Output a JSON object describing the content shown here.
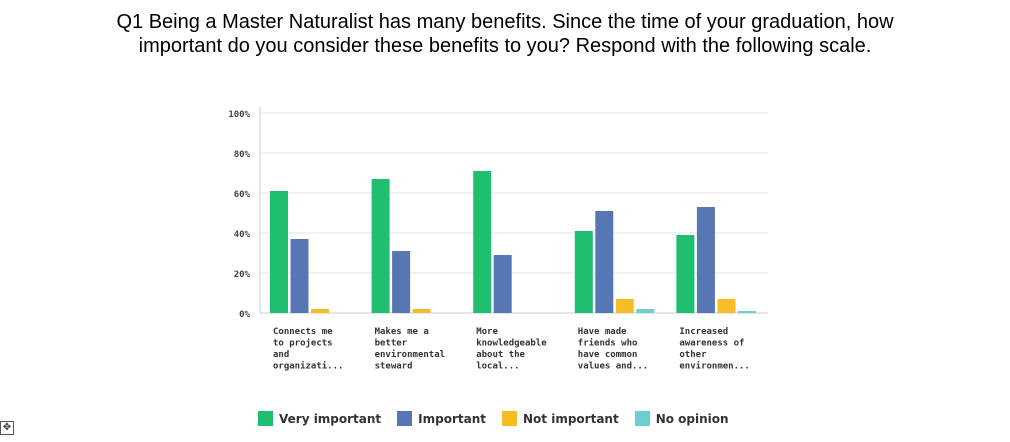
{
  "question": {
    "line1": "Q1 Being a Master Naturalist has many benefits. Since the time of your graduation, how",
    "line2": "important do you consider these benefits to you? Respond with the following scale."
  },
  "move_handle_icon": "move-icon",
  "colors": {
    "very_important": "#1fbf6f",
    "important": "#5677b4",
    "not_important": "#f7bd26",
    "no_opinion": "#6ccfcf",
    "grid": "#e6e6e6",
    "axis": "#cccccc"
  },
  "chart_data": {
    "type": "bar",
    "title": "",
    "xlabel": "",
    "ylabel": "",
    "ylim": [
      0,
      100
    ],
    "yticks": [
      "0%",
      "20%",
      "40%",
      "60%",
      "80%",
      "100%"
    ],
    "categories": [
      [
        "Connects me",
        "to projects",
        "and",
        "organizati..."
      ],
      [
        "Makes me a",
        "better",
        "environmental",
        "steward"
      ],
      [
        "More",
        "knowledgeable",
        "about the",
        "local..."
      ],
      [
        "Have made",
        "friends who",
        "have common",
        "values and..."
      ],
      [
        "Increased",
        "awareness of",
        "other",
        "environmen..."
      ]
    ],
    "series": [
      {
        "name": "Very important",
        "color": "#1fbf6f",
        "values": [
          61,
          67,
          71,
          41,
          39
        ]
      },
      {
        "name": "Important",
        "color": "#5677b4",
        "values": [
          37,
          31,
          29,
          51,
          53
        ]
      },
      {
        "name": "Not important",
        "color": "#f7bd26",
        "values": [
          2,
          2,
          0,
          7,
          7
        ]
      },
      {
        "name": "No opinion",
        "color": "#6ccfcf",
        "values": [
          0,
          0,
          0,
          2,
          1
        ]
      }
    ]
  },
  "legend": [
    {
      "label": "Very important",
      "color": "#1fbf6f"
    },
    {
      "label": "Important",
      "color": "#5677b4"
    },
    {
      "label": "Not important",
      "color": "#f7bd26"
    },
    {
      "label": "No opinion",
      "color": "#6ccfcf"
    }
  ]
}
